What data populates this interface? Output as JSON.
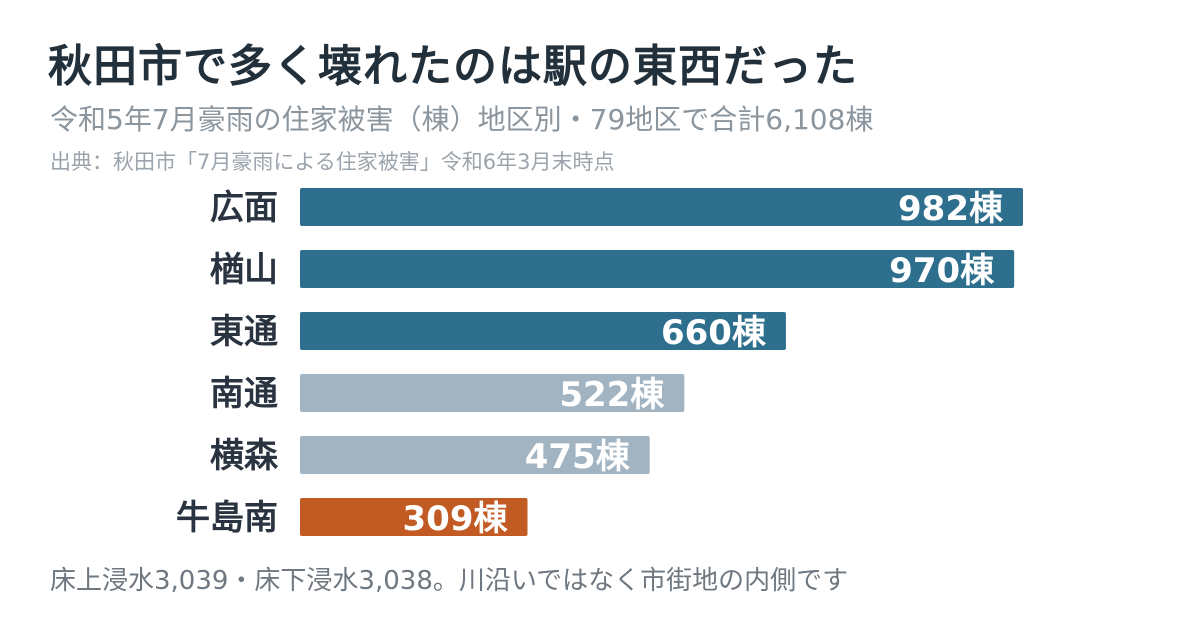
{
  "header": {
    "title": "秋田市で多く壊れたのは駅の東西だった",
    "subtitle": "令和5年7月豪雨の住家被害（棟）地区別・79地区で合計6,108棟",
    "source": "出典：秋田市「7月豪雨による住家被害」令和6年3月末時点"
  },
  "footer": {
    "note": "床上浸水3,039・床下浸水3,038。川沿いではなく市街地の内側です"
  },
  "chart_data": {
    "type": "bar",
    "orientation": "horizontal",
    "title": "秋田市で多く壊れたのは駅の東西だった",
    "subtitle": "令和5年7月豪雨の住家被害（棟）地区別・79地区で合計6,108棟",
    "categories": [
      "広面",
      "楢山",
      "東通",
      "南通",
      "横森",
      "牛島南"
    ],
    "values": [
      982,
      970,
      660,
      522,
      475,
      309
    ],
    "value_labels": [
      "982棟",
      "970棟",
      "660棟",
      "522棟",
      "475棟",
      "309棟"
    ],
    "bar_colors": [
      "#2e6f8e",
      "#2e6f8e",
      "#2e6f8e",
      "#a2b3c1",
      "#a2b3c1",
      "#c25a23"
    ],
    "xlim": [
      0,
      982
    ],
    "grid": false,
    "legend": "none"
  }
}
